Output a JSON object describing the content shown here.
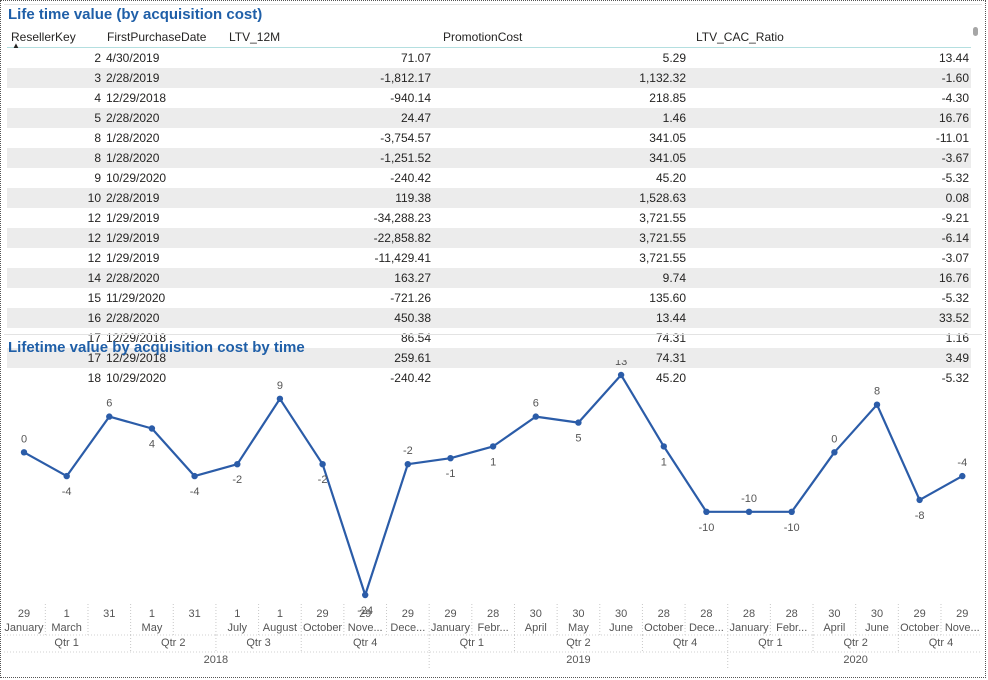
{
  "table": {
    "title": "Life time value (by acquisition cost)",
    "columns": [
      "ResellerKey",
      "FirstPurchaseDate",
      "LTV_12M",
      "PromotionCost",
      "LTV_CAC_Ratio"
    ],
    "sort_indicator": "▲",
    "rows": [
      [
        "2",
        "4/30/2019",
        "71.07",
        "5.29",
        "13.44"
      ],
      [
        "3",
        "2/28/2019",
        "-1,812.17",
        "1,132.32",
        "-1.60"
      ],
      [
        "4",
        "12/29/2018",
        "-940.14",
        "218.85",
        "-4.30"
      ],
      [
        "5",
        "2/28/2020",
        "24.47",
        "1.46",
        "16.76"
      ],
      [
        "8",
        "1/28/2020",
        "-3,754.57",
        "341.05",
        "-11.01"
      ],
      [
        "8",
        "1/28/2020",
        "-1,251.52",
        "341.05",
        "-3.67"
      ],
      [
        "9",
        "10/29/2020",
        "-240.42",
        "45.20",
        "-5.32"
      ],
      [
        "10",
        "2/28/2019",
        "119.38",
        "1,528.63",
        "0.08"
      ],
      [
        "12",
        "1/29/2019",
        "-34,288.23",
        "3,721.55",
        "-9.21"
      ],
      [
        "12",
        "1/29/2019",
        "-22,858.82",
        "3,721.55",
        "-6.14"
      ],
      [
        "12",
        "1/29/2019",
        "-11,429.41",
        "3,721.55",
        "-3.07"
      ],
      [
        "14",
        "2/28/2020",
        "163.27",
        "9.74",
        "16.76"
      ],
      [
        "15",
        "11/29/2020",
        "-721.26",
        "135.60",
        "-5.32"
      ],
      [
        "16",
        "2/28/2020",
        "450.38",
        "13.44",
        "33.52"
      ],
      [
        "17",
        "12/29/2018",
        "86.54",
        "74.31",
        "1.16"
      ],
      [
        "17",
        "12/29/2018",
        "259.61",
        "74.31",
        "3.49"
      ],
      [
        "18",
        "10/29/2020",
        "-240.42",
        "45.20",
        "-5.32"
      ]
    ]
  },
  "chart_data": {
    "type": "line",
    "title": "Lifetime value by acquisition cost by time",
    "series": [
      {
        "name": "LTV_CAC_Ratio",
        "color": "#2b5ca8",
        "values": [
          0,
          -4,
          6,
          4,
          -4,
          -2,
          9,
          -2,
          -24,
          -2,
          -1,
          1,
          6,
          5,
          13,
          1,
          -10,
          -10,
          -10,
          0,
          8,
          -8,
          -4
        ]
      }
    ],
    "ylim": [
      -24,
      13
    ],
    "x_days": [
      "29",
      "1",
      "31",
      "1",
      "31",
      "1",
      "1",
      "29",
      "29",
      "29",
      "29",
      "28",
      "30",
      "30",
      "30",
      "28",
      "28",
      "28",
      "28",
      "30",
      "30",
      "29",
      "29"
    ],
    "x_months": [
      "January",
      "March",
      "",
      "May",
      "",
      "July",
      "August",
      "October",
      "Nove...",
      "Dece...",
      "January",
      "Febr...",
      "April",
      "May",
      "June",
      "October",
      "Dece...",
      "January",
      "Febr...",
      "April",
      "June",
      "October",
      "Nove..."
    ],
    "quarters": [
      {
        "label": "Qtr 1",
        "start": 0,
        "end": 2
      },
      {
        "label": "Qtr 2",
        "start": 3,
        "end": 4
      },
      {
        "label": "Qtr 3",
        "start": 5,
        "end": 6
      },
      {
        "label": "Qtr 4",
        "start": 7,
        "end": 9
      },
      {
        "label": "Qtr 1",
        "start": 10,
        "end": 11
      },
      {
        "label": "Qtr 2",
        "start": 12,
        "end": 14
      },
      {
        "label": "Qtr 4",
        "start": 15,
        "end": 16
      },
      {
        "label": "Qtr 1",
        "start": 17,
        "end": 18
      },
      {
        "label": "Qtr 2",
        "start": 19,
        "end": 20
      },
      {
        "label": "Qtr 4",
        "start": 21,
        "end": 22
      }
    ],
    "years": [
      {
        "label": "2018",
        "start": 0,
        "end": 9
      },
      {
        "label": "2019",
        "start": 10,
        "end": 16
      },
      {
        "label": "2020",
        "start": 17,
        "end": 22
      }
    ]
  }
}
